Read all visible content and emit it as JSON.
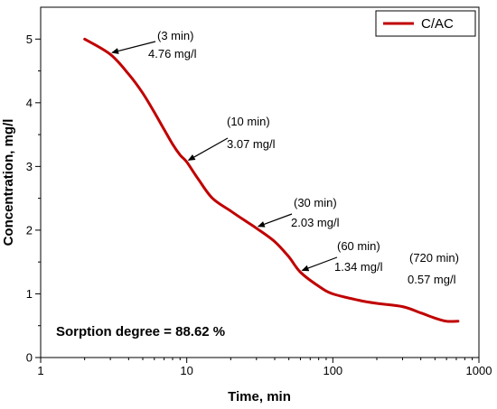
{
  "chart_data": {
    "type": "line",
    "xlabel": "Time, min",
    "ylabel": "Concentration, mg/l",
    "x_scale": "log",
    "xlim": [
      1,
      1000
    ],
    "ylim": [
      0,
      5.5
    ],
    "x_ticks": [
      1,
      10,
      100,
      1000
    ],
    "x_tick_labels": [
      "1",
      "10",
      "100",
      "1000"
    ],
    "y_ticks": [
      0,
      1,
      2,
      3,
      4,
      5
    ],
    "y_tick_labels": [
      "0",
      "1",
      "2",
      "3",
      "4",
      "5"
    ],
    "grid": false,
    "legend_position": "top-right",
    "series": [
      {
        "name": "C/AC",
        "color": "#c00000",
        "x": [
          2,
          3,
          4,
          5,
          6,
          7,
          8,
          9,
          10,
          12,
          15,
          20,
          25,
          30,
          40,
          50,
          60,
          80,
          100,
          150,
          200,
          300,
          400,
          500,
          600,
          720
        ],
        "y": [
          5.0,
          4.76,
          4.45,
          4.15,
          3.85,
          3.58,
          3.35,
          3.18,
          3.07,
          2.8,
          2.5,
          2.3,
          2.15,
          2.03,
          1.82,
          1.58,
          1.34,
          1.12,
          1.0,
          0.9,
          0.85,
          0.8,
          0.7,
          0.62,
          0.57,
          0.57
        ]
      }
    ],
    "annotations": [
      {
        "time": "(3 min)",
        "value": "4.76 mg/l",
        "x": 3,
        "y": 4.76
      },
      {
        "time": "(10 min)",
        "value": "3.07 mg/l",
        "x": 10,
        "y": 3.07
      },
      {
        "time": "(30 min)",
        "value": "2.03 mg/l",
        "x": 30,
        "y": 2.03
      },
      {
        "time": "(60 min)",
        "value": "1.34 mg/l",
        "x": 60,
        "y": 1.34
      },
      {
        "time": "(720 min)",
        "value": "0.57 mg/l",
        "x": 720,
        "y": 0.57
      }
    ],
    "note": "Sorption degree = 88.62 %"
  }
}
